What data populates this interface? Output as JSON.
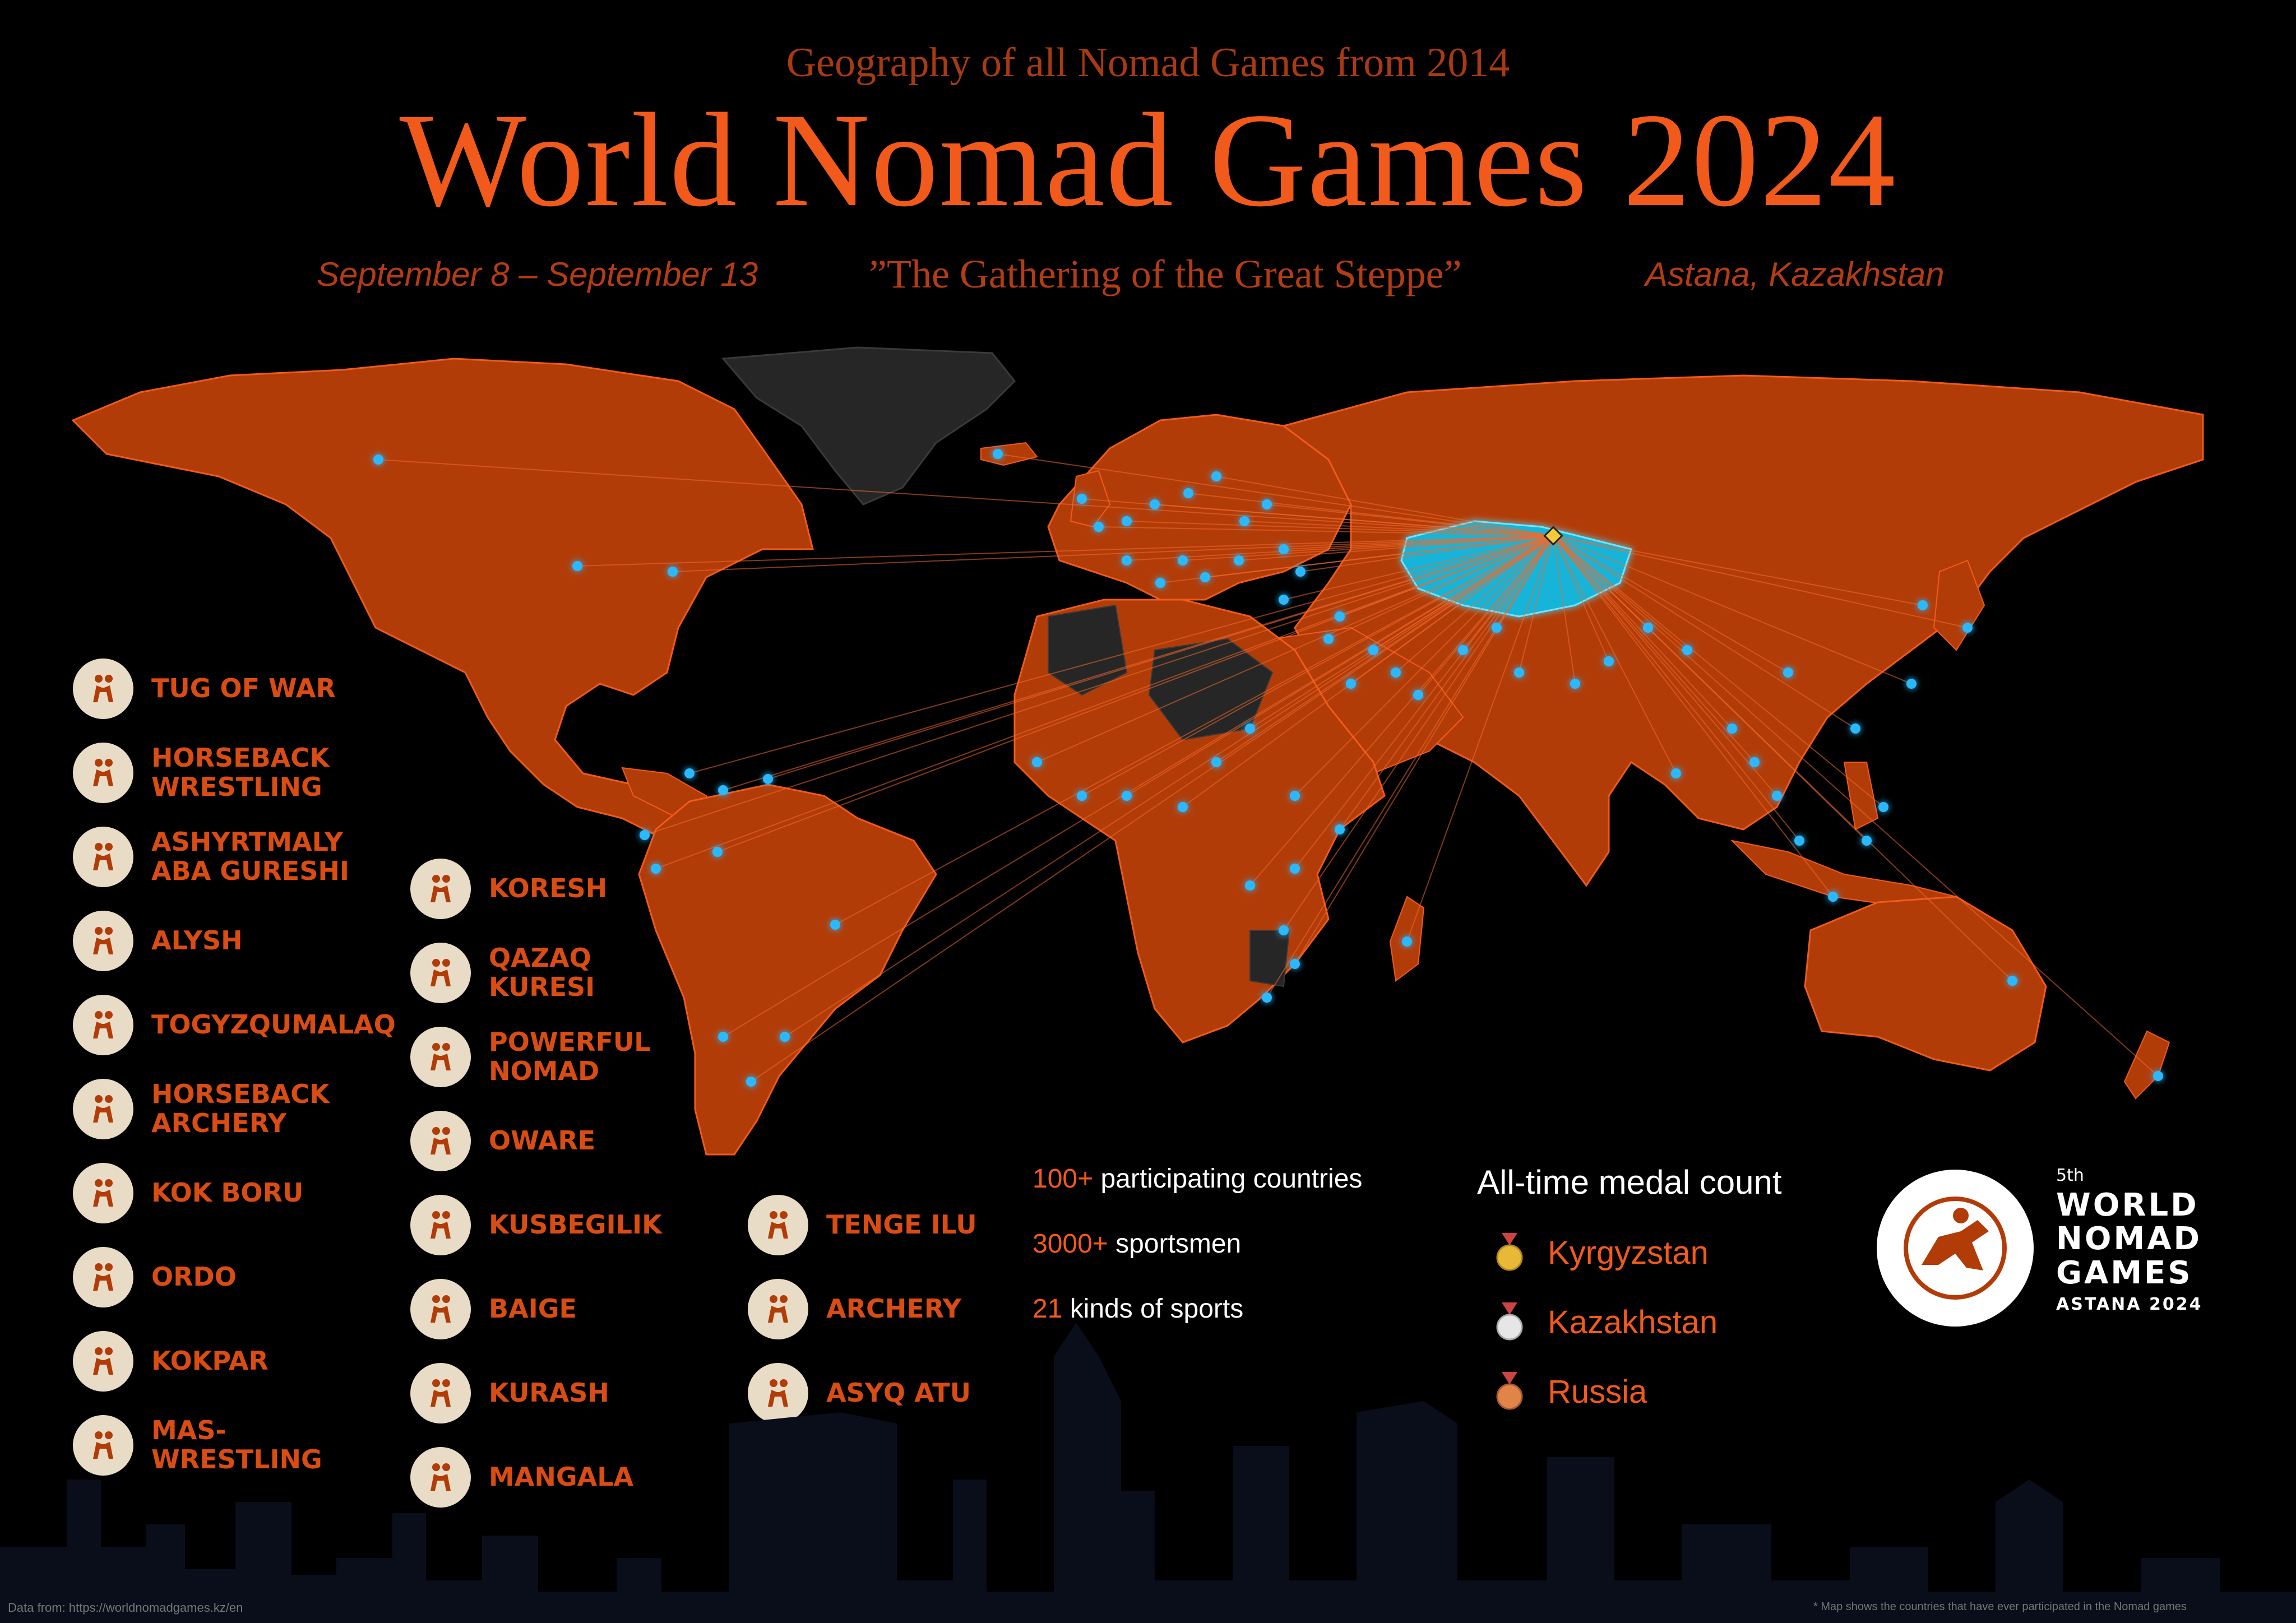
{
  "header": {
    "kicker": "Geography of all Nomad Games from 2014",
    "title": "World Nomad Games 2024",
    "dates": "September 8 – September 13",
    "motto": "”The Gathering of the Great Steppe”",
    "location": "Astana, Kazakhstan"
  },
  "map": {
    "land_color": "#b23c08",
    "border_color": "#f25a1c",
    "host_color": "#18b4d8",
    "nonparticipant_color": "#2a2a2a",
    "host_country": "Kazakhstan"
  },
  "sports": [
    {
      "name": "TUG OF WAR",
      "icon": "tug-of-war-icon"
    },
    {
      "name": "HORSEBACK\nWRESTLING",
      "icon": "horseback-wrestling-icon"
    },
    {
      "name": "ASHYRTMALY\nABA GURESHI",
      "icon": "wrestling-icon"
    },
    {
      "name": "ALYSH",
      "icon": "wrestling-icon"
    },
    {
      "name": "TOGYZQUMALAQ",
      "icon": "board-game-icon"
    },
    {
      "name": "HORSEBACK\nARCHERY",
      "icon": "horseback-archery-icon"
    },
    {
      "name": "KOK BORU",
      "icon": "horse-rider-icon"
    },
    {
      "name": "ORDO",
      "icon": "throwing-icon"
    },
    {
      "name": "KOKPAR",
      "icon": "horse-rider-icon"
    },
    {
      "name": "MAS-\nWRESTLING",
      "icon": "mas-wrestling-icon"
    },
    {
      "name": "KORESH",
      "icon": "wrestling-icon"
    },
    {
      "name": "QAZAQ\nKURESI",
      "icon": "wrestling-icon"
    },
    {
      "name": "POWERFUL\nNOMAD",
      "icon": "strongman-icon"
    },
    {
      "name": "OWARE",
      "icon": "board-game-icon"
    },
    {
      "name": "KUSBEGILIK",
      "icon": "falconry-icon"
    },
    {
      "name": "BAIGE",
      "icon": "horse-race-icon"
    },
    {
      "name": "KURASH",
      "icon": "wrestling-icon"
    },
    {
      "name": "MANGALA",
      "icon": "board-game-icon"
    },
    {
      "name": "TENGE ILU",
      "icon": "horse-rider-icon"
    },
    {
      "name": "ARCHERY",
      "icon": "archery-icon"
    },
    {
      "name": "ASYQ ATU",
      "icon": "throwing-icon"
    }
  ],
  "stats": [
    {
      "value": "100+",
      "label": "participating countries"
    },
    {
      "value": "3000+",
      "label": "sportsmen"
    },
    {
      "value": "21",
      "label": "kinds of sports"
    }
  ],
  "medals": {
    "title": "All-time medal count",
    "rows": [
      {
        "country": "Kyrgyzstan",
        "medal": "gold-medal-icon",
        "color": "#e8b838"
      },
      {
        "country": "Kazakhstan",
        "medal": "silver-medal-icon",
        "color": "#e6e6e6"
      },
      {
        "country": "Russia",
        "medal": "bronze-medal-icon",
        "color": "#e0844a"
      }
    ]
  },
  "logo": {
    "edition": "5th",
    "line1": "WORLD",
    "line2": "NOMAD",
    "line3": "GAMES",
    "line4": "ASTANA 2024"
  },
  "footer": {
    "source": "Data from: https://worldnomadgames.kz/en",
    "note": "* Map shows the countries that have ever participated in the Nomad games"
  }
}
